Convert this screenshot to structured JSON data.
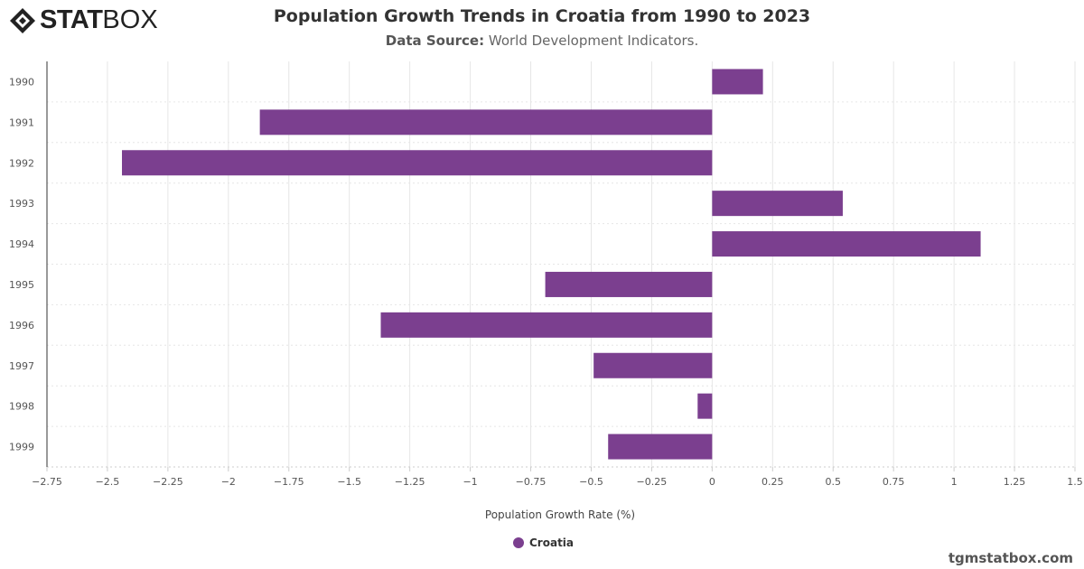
{
  "logo": {
    "text_bold": "STAT",
    "text_light": "BOX"
  },
  "title": "Population Growth Trends in Croatia from 1990 to 2023",
  "subtitle": {
    "label": "Data Source:",
    "value": "World Development Indicators."
  },
  "credit": "tgmstatbox.com",
  "colors": {
    "bar": "#7b3f8f"
  },
  "chart_data": {
    "type": "bar",
    "orientation": "horizontal",
    "title": "Population Growth Trends in Croatia from 1990 to 2023",
    "xlabel": "Population Growth Rate (%)",
    "ylabel": "",
    "categories": [
      "1990",
      "1991",
      "1992",
      "1993",
      "1994",
      "1995",
      "1996",
      "1997",
      "1998",
      "1999"
    ],
    "series": [
      {
        "name": "Croatia",
        "values": [
          0.21,
          -1.87,
          -2.44,
          0.54,
          1.11,
          -0.69,
          -1.37,
          -0.49,
          -0.06,
          -0.43
        ]
      }
    ],
    "xlim": [
      -2.75,
      1.5
    ],
    "xticks": [
      "-2.75",
      "-2.5",
      "-2.25",
      "-2",
      "-1.75",
      "-1.5",
      "-1.25",
      "-1",
      "-0.75",
      "-0.5",
      "-0.25",
      "0",
      "0.25",
      "0.5",
      "0.75",
      "1",
      "1.25",
      "1.5"
    ],
    "grid": true,
    "legend": "bottom"
  }
}
